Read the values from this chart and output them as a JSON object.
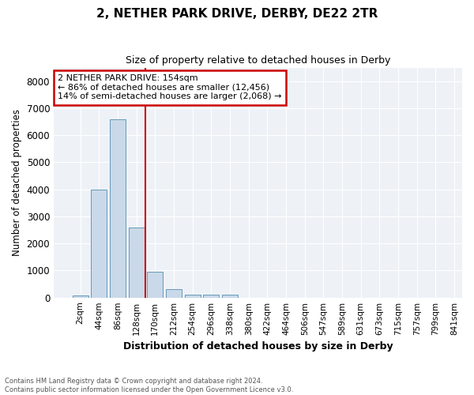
{
  "title": "2, NETHER PARK DRIVE, DERBY, DE22 2TR",
  "subtitle": "Size of property relative to detached houses in Derby",
  "xlabel": "Distribution of detached houses by size in Derby",
  "ylabel": "Number of detached properties",
  "bar_values": [
    80,
    4000,
    6600,
    2600,
    950,
    300,
    120,
    100,
    100,
    0,
    0,
    0,
    0,
    0,
    0,
    0,
    0,
    0,
    0,
    0
  ],
  "bar_labels": [
    "2sqm",
    "44sqm",
    "86sqm",
    "128sqm",
    "170sqm",
    "212sqm",
    "254sqm",
    "296sqm",
    "338sqm",
    "380sqm",
    "422sqm",
    "464sqm",
    "506sqm",
    "547sqm",
    "589sqm",
    "631sqm",
    "673sqm",
    "715sqm",
    "757sqm",
    "799sqm",
    "841sqm"
  ],
  "bar_color": "#c9d9e9",
  "bar_edge_color": "#6699bb",
  "vline_color": "#cc0000",
  "annotation_title": "2 NETHER PARK DRIVE: 154sqm",
  "annotation_line1": "← 86% of detached houses are smaller (12,456)",
  "annotation_line2": "14% of semi-detached houses are larger (2,068) →",
  "annotation_box_color": "#cc0000",
  "ylim": [
    0,
    8500
  ],
  "yticks": [
    0,
    1000,
    2000,
    3000,
    4000,
    5000,
    6000,
    7000,
    8000
  ],
  "footer_line1": "Contains HM Land Registry data © Crown copyright and database right 2024.",
  "footer_line2": "Contains public sector information licensed under the Open Government Licence v3.0.",
  "plot_bg_color": "#eef2f7"
}
